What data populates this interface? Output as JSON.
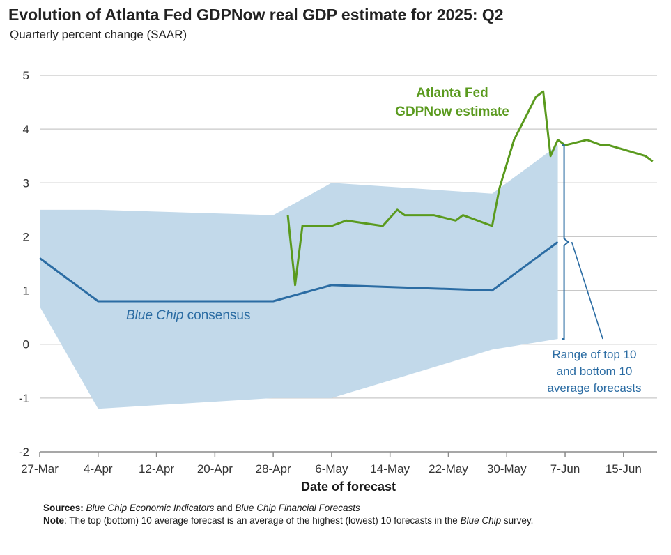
{
  "title": "Evolution of Atlanta Fed GDPNow real GDP estimate for 2025: Q2",
  "subtitle": "Quarterly percent change (SAAR)",
  "chart_data": {
    "type": "line",
    "xlabel": "Date of forecast",
    "ylabel": "",
    "ylim": [
      -2,
      5
    ],
    "yticks": [
      "5",
      "4",
      "3",
      "2",
      "1",
      "0",
      "-1",
      "-2"
    ],
    "x_tick_labels": [
      "27-Mar",
      "4-Apr",
      "12-Apr",
      "20-Apr",
      "28-Apr",
      "6-May",
      "14-May",
      "22-May",
      "30-May",
      "7-Jun",
      "15-Jun"
    ],
    "grid": "horizontal",
    "colors": {
      "gdpnow": "#5a9a1e",
      "consensus": "#2b6ca3",
      "range": "#c2d9ea"
    },
    "series": [
      {
        "name": "Atlanta Fed GDPNow estimate",
        "points": [
          [
            "2025-04-30",
            2.4
          ],
          [
            "2025-05-01",
            1.1
          ],
          [
            "2025-05-02",
            2.2
          ],
          [
            "2025-05-06",
            2.2
          ],
          [
            "2025-05-08",
            2.3
          ],
          [
            "2025-05-13",
            2.2
          ],
          [
            "2025-05-15",
            2.5
          ],
          [
            "2025-05-16",
            2.4
          ],
          [
            "2025-05-20",
            2.4
          ],
          [
            "2025-05-23",
            2.3
          ],
          [
            "2025-05-24",
            2.4
          ],
          [
            "2025-05-28",
            2.2
          ],
          [
            "2025-05-29",
            2.9
          ],
          [
            "2025-05-31",
            3.8
          ],
          [
            "2025-06-03",
            4.6
          ],
          [
            "2025-06-04",
            4.7
          ],
          [
            "2025-06-05",
            3.5
          ],
          [
            "2025-06-06",
            3.8
          ],
          [
            "2025-06-07",
            3.7
          ],
          [
            "2025-06-10",
            3.8
          ],
          [
            "2025-06-12",
            3.7
          ],
          [
            "2025-06-13",
            3.7
          ],
          [
            "2025-06-18",
            3.5
          ],
          [
            "2025-06-19",
            3.4
          ]
        ]
      },
      {
        "name": "Blue Chip consensus",
        "points": [
          [
            "2025-03-27",
            1.6
          ],
          [
            "2025-04-04",
            0.8
          ],
          [
            "2025-04-28",
            0.8
          ],
          [
            "2025-05-06",
            1.1
          ],
          [
            "2025-05-28",
            1.0
          ],
          [
            "2025-06-06",
            1.9
          ]
        ]
      },
      {
        "name": "Range of top 10 and bottom 10 average forecasts",
        "upper": [
          [
            "2025-03-27",
            2.5
          ],
          [
            "2025-04-04",
            2.5
          ],
          [
            "2025-04-28",
            2.4
          ],
          [
            "2025-05-06",
            3.0
          ],
          [
            "2025-05-28",
            2.8
          ],
          [
            "2025-06-06",
            3.7
          ]
        ],
        "lower": [
          [
            "2025-03-27",
            0.7
          ],
          [
            "2025-04-04",
            -1.2
          ],
          [
            "2025-04-28",
            -1.0
          ],
          [
            "2025-05-06",
            -1.0
          ],
          [
            "2025-05-28",
            -0.1
          ],
          [
            "2025-06-06",
            0.1
          ]
        ]
      }
    ],
    "annotations": {
      "gdpnow_label": [
        "Atlanta Fed",
        "GDPNow estimate"
      ],
      "consensus_label_italic": "Blue Chip",
      "consensus_label_rest": " consensus",
      "range_label": [
        "Range of top 10",
        "and bottom 10",
        "average forecasts"
      ]
    }
  },
  "notes": {
    "sources_label": "Sources:",
    "sources_text_1": "Blue Chip Economic Indicators",
    "sources_text_2": " and ",
    "sources_text_3": "Blue Chip Financial Forecasts",
    "note_label": "Note",
    "note_text_1": ": The top (bottom) 10 average forecast is an average of the highest (lowest) 10 forecasts in the ",
    "note_text_2": "Blue Chip",
    "note_text_3": " survey."
  }
}
